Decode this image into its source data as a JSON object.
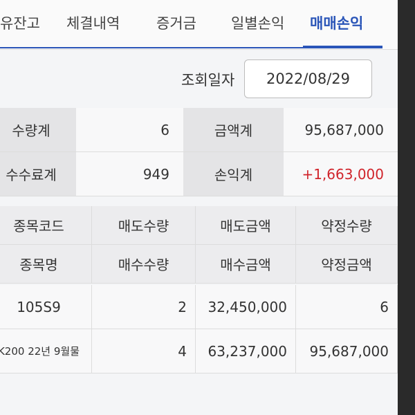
{
  "tabs": [
    "유잔고",
    "체결내역",
    "증거금",
    "일별손익",
    "매매손익"
  ],
  "query": {
    "label": "조회일자",
    "date": "2022/08/29"
  },
  "summary": [
    {
      "label": "수량계",
      "value": "6",
      "label2": "금액계",
      "value2": "95,687,000"
    },
    {
      "label": "수수료계",
      "value": "949",
      "label2": "손익계",
      "value2": "+1,663,000"
    }
  ],
  "table": {
    "header": [
      [
        "종목코드",
        "매도수량",
        "매도금액",
        "약정수량"
      ],
      [
        "종목명",
        "매수수량",
        "매수금액",
        "약정금액"
      ]
    ],
    "rows": [
      [
        "105S9",
        "2",
        "32,450,000",
        "6"
      ],
      [
        "K200 22년 9월물",
        "4",
        "63,237,000",
        "95,687,000"
      ]
    ]
  }
}
